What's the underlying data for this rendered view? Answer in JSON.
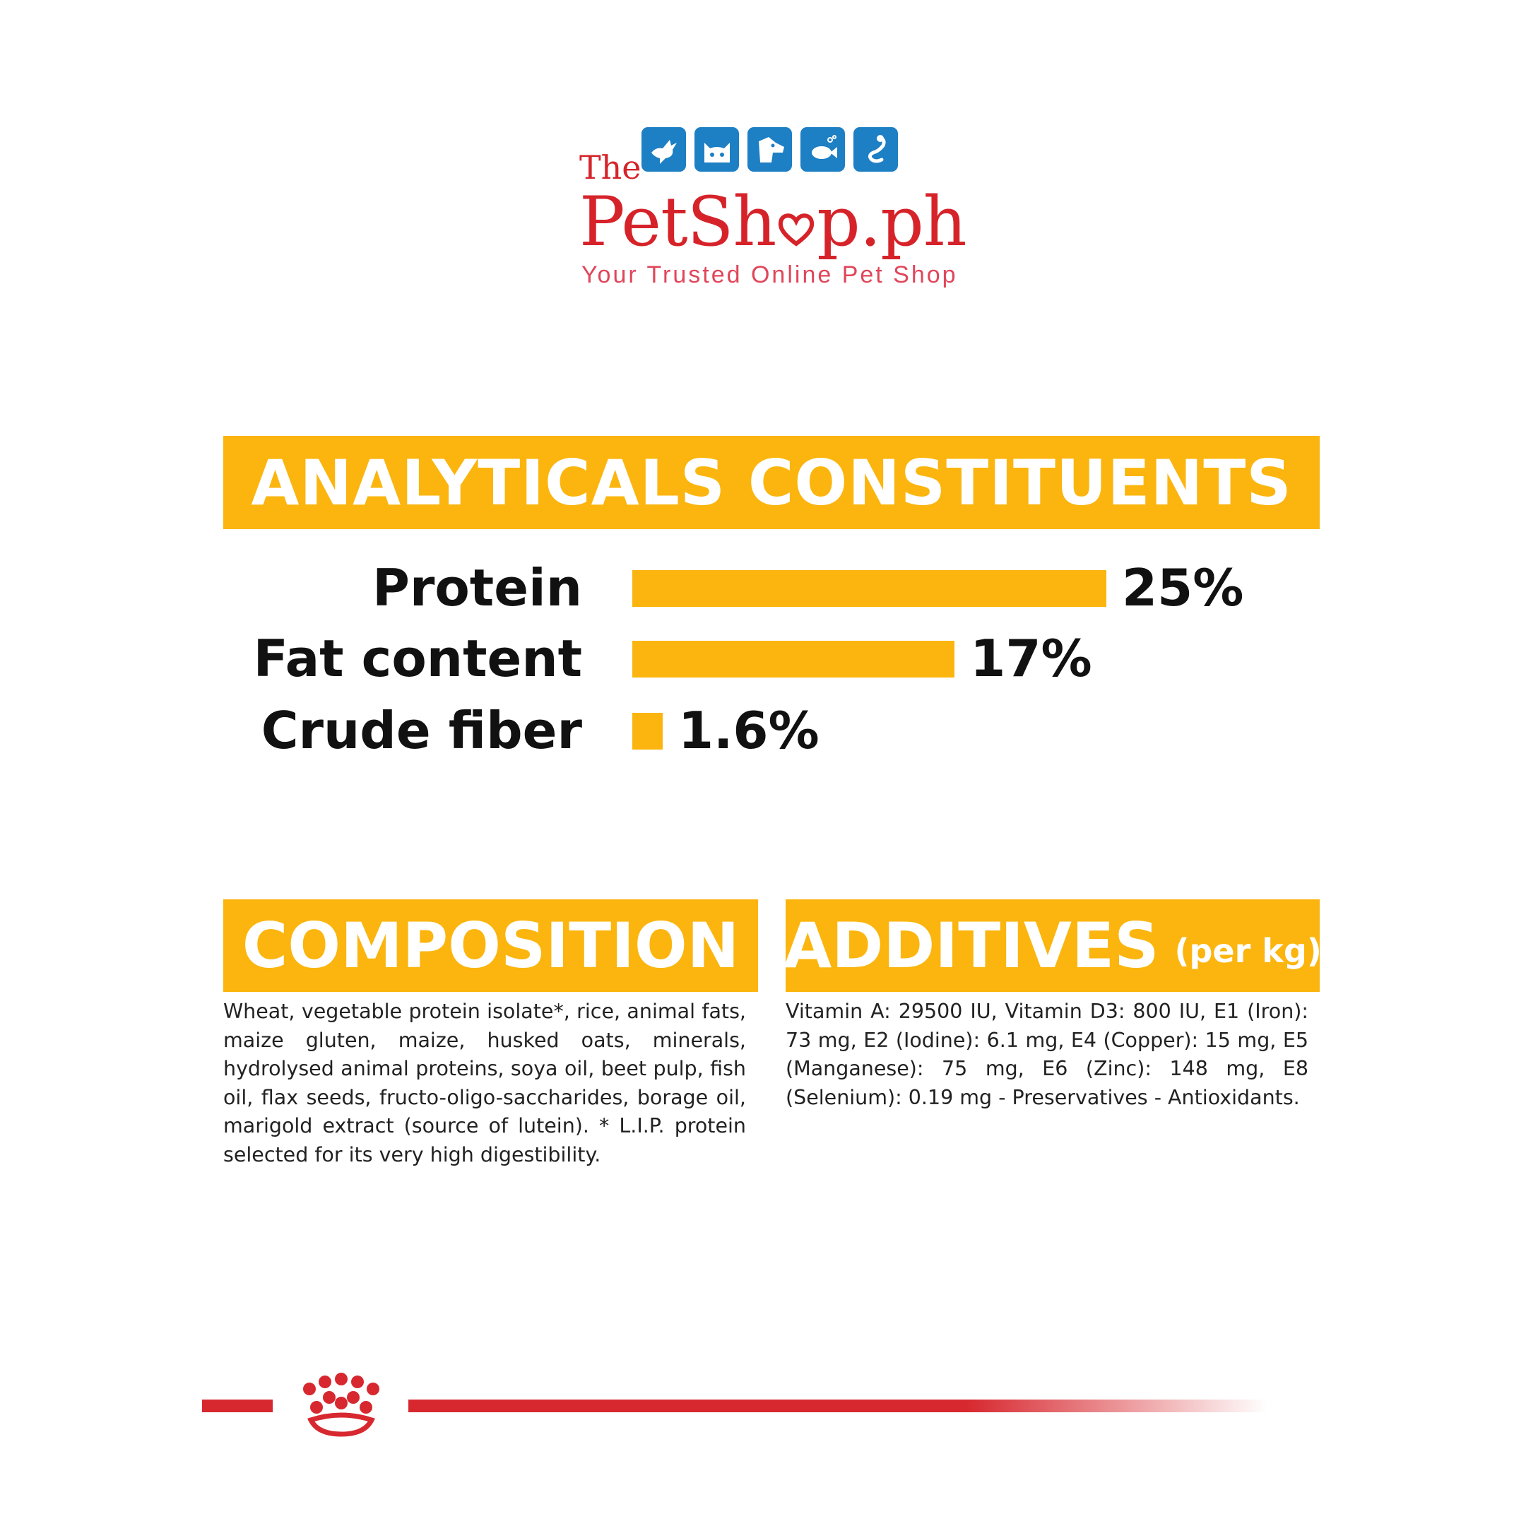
{
  "logo": {
    "the": "The",
    "main_left": "PetSh",
    "main_right": "p.ph",
    "tagline": "Your Trusted Online Pet Shop",
    "tiles": [
      "bird-icon",
      "cat-icon",
      "dog-icon",
      "fish-icon",
      "snake-icon"
    ],
    "tile_color": "#1d7fc4",
    "text_color": "#d6232a"
  },
  "analytics": {
    "title": "ANALYTICALS CONSTITUENTS",
    "rows": [
      {
        "label": "Protein",
        "value": "25%",
        "percent": 25
      },
      {
        "label": "Fat content",
        "value": "17%",
        "percent": 17
      },
      {
        "label": "Crude fiber",
        "value": "1.6%",
        "percent": 1.6
      }
    ]
  },
  "composition": {
    "title": "COMPOSITION",
    "text": "Wheat, vegetable protein isolate*, rice, animal fats, maize gluten, maize, husked oats, minerals, hydrolysed animal proteins, soya oil, beet pulp, fish oil, flax seeds, fructo-oligo-saccharides, borage oil, marigold extract (source of lutein). * L.I.P. protein selected for its very high digestibility."
  },
  "additives": {
    "title": "ADDITIVES",
    "title_suffix": "(per kg)",
    "text": "Vitamin A: 29500 IU, Vitamin D3: 800 IU, E1 (Iron): 73 mg, E2 (Iodine): 6.1 mg, E4 (Copper): 15 mg, E5 (Manganese): 75 mg, E6 (Zinc): 148 mg, E8 (Selenium): 0.19 mg - Preservatives - Antioxidants."
  },
  "colors": {
    "accent": "#fbb50e",
    "brand_red": "#d7282f"
  },
  "footer": {
    "icon": "royal-canin-crown-icon"
  }
}
